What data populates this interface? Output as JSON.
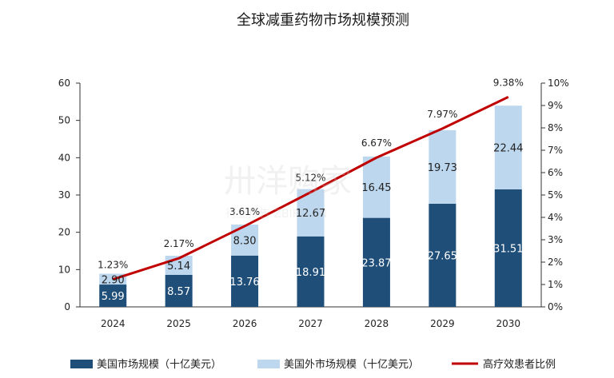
{
  "chart_data": {
    "type": "bar",
    "title": "全球减重药物市场规模预测",
    "categories": [
      "2024",
      "2025",
      "2026",
      "2027",
      "2028",
      "2029",
      "2030"
    ],
    "series": [
      {
        "name": "美国市场规模（十亿美元）",
        "kind": "bar",
        "axis": "left",
        "color": "#1f4e79",
        "values": [
          5.99,
          8.57,
          13.76,
          18.91,
          23.87,
          27.65,
          31.51
        ],
        "labels": [
          "5.99",
          "8.57",
          "13.76",
          "18.91",
          "23.87",
          "27.65",
          "31.51"
        ]
      },
      {
        "name": "美国外市场规模（十亿美元）",
        "kind": "bar",
        "axis": "left",
        "color": "#bdd7ee",
        "values": [
          2.9,
          5.14,
          8.3,
          12.67,
          16.45,
          19.73,
          22.44
        ],
        "labels": [
          "2.90",
          "5.14",
          "8.30",
          "12.67",
          "16.45",
          "19.73",
          "22.44"
        ]
      },
      {
        "name": "高疗效患者比例",
        "kind": "line",
        "axis": "right",
        "color": "#c00000",
        "values": [
          1.23,
          2.17,
          3.61,
          5.12,
          6.67,
          7.97,
          9.38
        ],
        "labels": [
          "1.23%",
          "2.17%",
          "3.61%",
          "5.12%",
          "6.67%",
          "7.97%",
          "9.38%"
        ]
      }
    ],
    "ylim": [
      0,
      60
    ],
    "yticks": [
      "0",
      "10",
      "20",
      "30",
      "40",
      "50",
      "60"
    ],
    "y2lim": [
      0,
      10
    ],
    "y2ticks": [
      "0%",
      "1%",
      "2%",
      "3%",
      "4%",
      "5%",
      "6%",
      "7%",
      "8%",
      "9%",
      "10%"
    ],
    "legend_position": "bottom",
    "grid": false,
    "watermark": "卅 洋 购 家 行业报告 ZBIPO.CN"
  }
}
